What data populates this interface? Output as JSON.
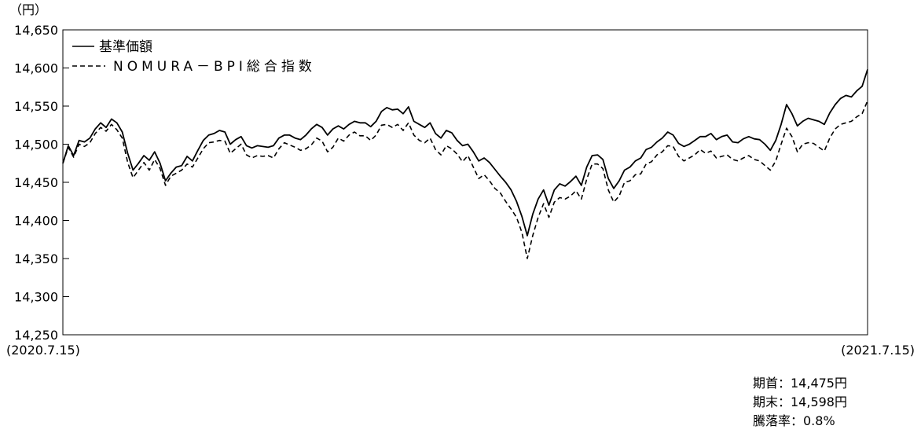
{
  "chart_data": {
    "type": "line",
    "unit_label": "（円）",
    "x_start_label": "(2020.7.15)",
    "x_end_label": "(2021.7.15)",
    "ylim": [
      14250,
      14650
    ],
    "y_ticks": [
      14650,
      14600,
      14550,
      14500,
      14450,
      14400,
      14350,
      14300,
      14250
    ],
    "y_tick_labels": [
      "14,650",
      "14,600",
      "14,550",
      "14,500",
      "14,450",
      "14,400",
      "14,350",
      "14,300",
      "14,250"
    ],
    "grid": false,
    "legend_position": "top-left",
    "series": [
      {
        "name": "基準価額",
        "style": "solid",
        "values": [
          14475,
          14498,
          14485,
          14505,
          14503,
          14508,
          14520,
          14528,
          14522,
          14533,
          14528,
          14516,
          14488,
          14466,
          14475,
          14485,
          14479,
          14490,
          14475,
          14452,
          14462,
          14470,
          14472,
          14484,
          14478,
          14492,
          14505,
          14512,
          14514,
          14518,
          14516,
          14500,
          14506,
          14510,
          14498,
          14495,
          14498,
          14497,
          14496,
          14498,
          14508,
          14512,
          14512,
          14508,
          14506,
          14512,
          14520,
          14526,
          14522,
          14512,
          14520,
          14524,
          14520,
          14526,
          14530,
          14528,
          14528,
          14523,
          14530,
          14543,
          14548,
          14545,
          14546,
          14540,
          14549,
          14530,
          14526,
          14522,
          14528,
          14514,
          14508,
          14518,
          14515,
          14505,
          14498,
          14500,
          14490,
          14478,
          14482,
          14476,
          14467,
          14458,
          14450,
          14440,
          14425,
          14405,
          14380,
          14408,
          14428,
          14440,
          14420,
          14440,
          14448,
          14445,
          14451,
          14458,
          14446,
          14470,
          14485,
          14486,
          14480,
          14455,
          14442,
          14452,
          14466,
          14470,
          14478,
          14482,
          14493,
          14496,
          14503,
          14508,
          14516,
          14512,
          14501,
          14497,
          14500,
          14505,
          14510,
          14510,
          14514,
          14506,
          14510,
          14512,
          14503,
          14502,
          14507,
          14510,
          14507,
          14506,
          14500,
          14492,
          14505,
          14526,
          14552,
          14540,
          14524,
          14530,
          14534,
          14532,
          14530,
          14526,
          14541,
          14552,
          14560,
          14564,
          14562,
          14570,
          14576,
          14598
        ]
      },
      {
        "name": "NOMURA－BPI総合指数",
        "style": "dashed",
        "values": [
          14475,
          14496,
          14483,
          14500,
          14497,
          14502,
          14514,
          14522,
          14517,
          14526,
          14519,
          14508,
          14476,
          14456,
          14466,
          14476,
          14466,
          14480,
          14468,
          14446,
          14458,
          14462,
          14466,
          14474,
          14470,
          14482,
          14494,
          14502,
          14503,
          14505,
          14504,
          14488,
          14494,
          14500,
          14486,
          14482,
          14485,
          14484,
          14485,
          14482,
          14494,
          14502,
          14499,
          14496,
          14492,
          14494,
          14499,
          14508,
          14504,
          14490,
          14496,
          14508,
          14504,
          14512,
          14516,
          14511,
          14511,
          14505,
          14512,
          14525,
          14526,
          14522,
          14526,
          14518,
          14528,
          14512,
          14505,
          14502,
          14508,
          14493,
          14486,
          14498,
          14494,
          14487,
          14477,
          14485,
          14470,
          14455,
          14460,
          14452,
          14442,
          14436,
          14425,
          14415,
          14404,
          14384,
          14350,
          14380,
          14404,
          14422,
          14404,
          14424,
          14430,
          14428,
          14432,
          14439,
          14428,
          14454,
          14474,
          14474,
          14468,
          14440,
          14424,
          14432,
          14450,
          14452,
          14460,
          14461,
          14474,
          14477,
          14486,
          14490,
          14498,
          14497,
          14484,
          14478,
          14482,
          14486,
          14493,
          14488,
          14491,
          14482,
          14484,
          14486,
          14480,
          14478,
          14482,
          14485,
          14480,
          14478,
          14472,
          14466,
          14478,
          14500,
          14521,
          14510,
          14490,
          14500,
          14502,
          14501,
          14496,
          14491,
          14508,
          14520,
          14526,
          14528,
          14530,
          14536,
          14540,
          14557
        ]
      }
    ]
  },
  "summary": {
    "start_label": "期首：14,475円",
    "end_label": "期末：14,598円",
    "change_label": "騰落率：0.8%"
  }
}
